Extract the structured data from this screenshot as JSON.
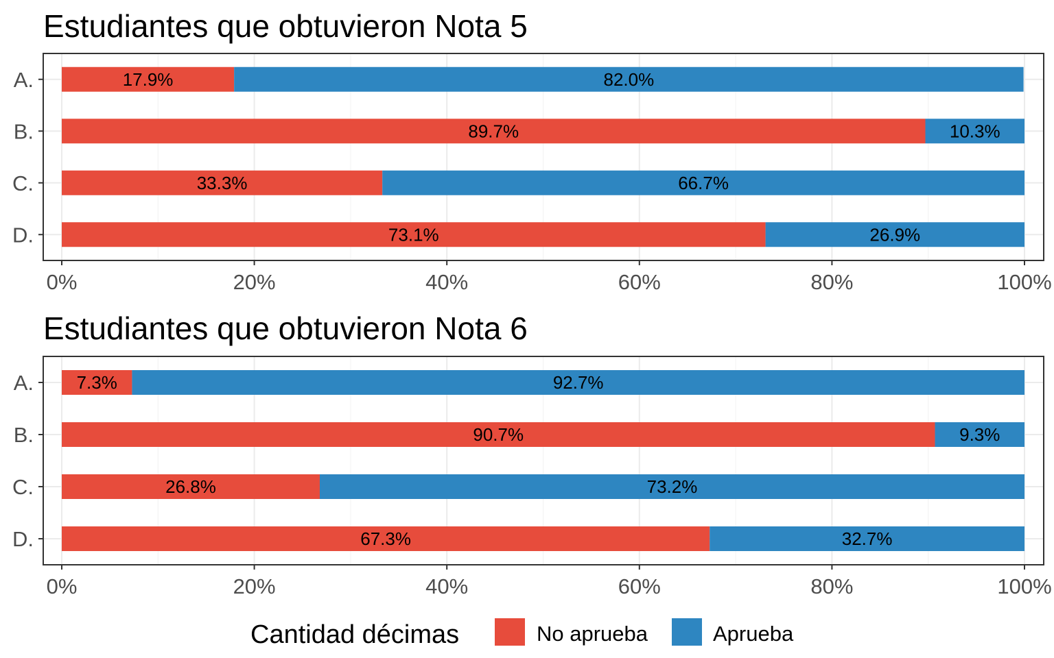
{
  "chart_data": [
    {
      "type": "bar",
      "orientation": "horizontal",
      "stacked": true,
      "title": "Estudiantes que obtuvieron Nota 5",
      "categories": [
        "A.",
        "B.",
        "C.",
        "D."
      ],
      "series": [
        {
          "name": "No aprueba",
          "values": [
            17.9,
            89.7,
            33.3,
            73.1
          ],
          "labels": [
            "17.9%",
            "89.7%",
            "33.3%",
            "73.1%"
          ]
        },
        {
          "name": "Aprueba",
          "values": [
            82.0,
            10.3,
            66.7,
            26.9
          ],
          "labels": [
            "82.0%",
            "10.3%",
            "66.7%",
            "26.9%"
          ]
        }
      ],
      "xlim": [
        0,
        100
      ],
      "xticks": [
        "0%",
        "20%",
        "40%",
        "60%",
        "80%",
        "100%"
      ],
      "grid": true
    },
    {
      "type": "bar",
      "orientation": "horizontal",
      "stacked": true,
      "title": "Estudiantes que obtuvieron Nota 6",
      "categories": [
        "A.",
        "B.",
        "C.",
        "D."
      ],
      "series": [
        {
          "name": "No aprueba",
          "values": [
            7.3,
            90.7,
            26.8,
            67.3
          ],
          "labels": [
            "7.3%",
            "90.7%",
            "26.8%",
            "67.3%"
          ]
        },
        {
          "name": "Aprueba",
          "values": [
            92.7,
            9.3,
            73.2,
            32.7
          ],
          "labels": [
            "92.7%",
            "9.3%",
            "73.2%",
            "32.7%"
          ]
        }
      ],
      "xlim": [
        0,
        100
      ],
      "xticks": [
        "0%",
        "20%",
        "40%",
        "60%",
        "80%",
        "100%"
      ],
      "grid": true
    }
  ],
  "legend": {
    "title": "Cantidad décimas",
    "position": "bottom",
    "items": [
      {
        "name": "No aprueba",
        "color": "#E74C3C"
      },
      {
        "name": "Aprueba",
        "color": "#2E86C1"
      }
    ]
  },
  "colors": {
    "No aprueba": "#E74C3C",
    "Aprueba": "#2E86C1"
  }
}
